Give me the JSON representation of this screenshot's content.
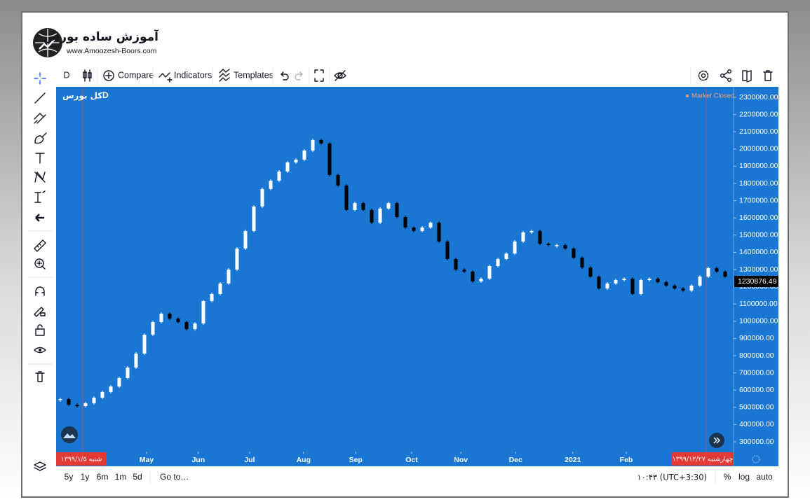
{
  "logo": {
    "title": "آموزش ساده بورس",
    "url": "www.Amoozesh-Boors.com"
  },
  "toolbar": {
    "interval": "D",
    "compare": "Compare",
    "indicators": "Indicators",
    "templates": "Templates"
  },
  "legend": {
    "symbol": "کل بورس",
    "interval": "D"
  },
  "status": "Market Closed",
  "crosshair_dates": [
    "شنبه ۱۳۹۹/۱/۵",
    "چهارشنبه ۱۳۹۹/۱۲/۲۷"
  ],
  "bottom": {
    "ranges": [
      "5y",
      "1y",
      "6m",
      "1m",
      "5d"
    ],
    "goto": "Go to…",
    "time": "۱۰:۴۳ (UTC+3:30)",
    "percent": "%",
    "log": "log",
    "auto": "auto"
  },
  "chart_data": {
    "type": "candlestick",
    "background": "#1976d2",
    "up_color": "#ffffff",
    "down_color": "#000000",
    "xlim": [
      -0.5,
      80
    ],
    "ylim": [
      243000,
      2361000
    ],
    "xticks": [
      {
        "value": 10.25,
        "label": "May"
      },
      {
        "value": 16.4,
        "label": "Jun"
      },
      {
        "value": 22.5,
        "label": "Jul"
      },
      {
        "value": 28.9,
        "label": "Aug"
      },
      {
        "value": 35.1,
        "label": "Sep"
      },
      {
        "value": 41.75,
        "label": "Oct"
      },
      {
        "value": 47.6,
        "label": "Nov"
      },
      {
        "value": 54.1,
        "label": "Dec"
      },
      {
        "value": 60.9,
        "label": "2021"
      },
      {
        "value": 67.25,
        "label": "Feb"
      }
    ],
    "yticks": [
      {
        "value": 300000,
        "label": "300000.00"
      },
      {
        "value": 400000,
        "label": "400000.00"
      },
      {
        "value": 500000,
        "label": "500000.00"
      },
      {
        "value": 600000,
        "label": "600000.00"
      },
      {
        "value": 700000,
        "label": "700000.00"
      },
      {
        "value": 800000,
        "label": "800000.00"
      },
      {
        "value": 900000,
        "label": "900000.00"
      },
      {
        "value": 1000000,
        "label": "1000000.00"
      },
      {
        "value": 1100000,
        "label": "1100000.00"
      },
      {
        "value": 1200000,
        "label": "1200000.00"
      },
      {
        "value": 1300000,
        "label": "1300000.00"
      },
      {
        "value": 1400000,
        "label": "1400000.00"
      },
      {
        "value": 1500000,
        "label": "1500000.00"
      },
      {
        "value": 1600000,
        "label": "1600000.00"
      },
      {
        "value": 1700000,
        "label": "1700000.00"
      },
      {
        "value": 1800000,
        "label": "1800000.00"
      },
      {
        "value": 1900000,
        "label": "1900000.00"
      },
      {
        "value": 2000000,
        "label": "2000000.00"
      },
      {
        "value": 2100000,
        "label": "2100000.00"
      },
      {
        "value": 2200000,
        "label": "2200000.00"
      },
      {
        "value": 2300000,
        "label": "2300000.00"
      }
    ],
    "values": [
      548000,
      515000,
      507000,
      524000,
      556000,
      589000,
      621000,
      670000,
      731000,
      812000,
      922000,
      995000,
      1044000,
      1015000,
      995000,
      954000,
      987000,
      1117000,
      1158000,
      1219000,
      1300000,
      1422000,
      1524000,
      1666000,
      1768000,
      1816000,
      1869000,
      1922000,
      1938000,
      1991000,
      2052000,
      2032000,
      1849000,
      1788000,
      1646000,
      1686000,
      1646000,
      1572000,
      1654000,
      1686000,
      1605000,
      1544000,
      1524000,
      1544000,
      1572000,
      1463000,
      1361000,
      1300000,
      1288000,
      1231000,
      1247000,
      1320000,
      1361000,
      1393000,
      1463000,
      1516000,
      1524000,
      1450000,
      1442000,
      1442000,
      1422000,
      1369000,
      1312000,
      1259000,
      1190000,
      1219000,
      1239000,
      1247000,
      1158000,
      1239000,
      1247000,
      1227000,
      1207000,
      1190000,
      1178000,
      1207000,
      1259000,
      1308000,
      1288000,
      1259000
    ],
    "last_price": 1230876.49
  }
}
